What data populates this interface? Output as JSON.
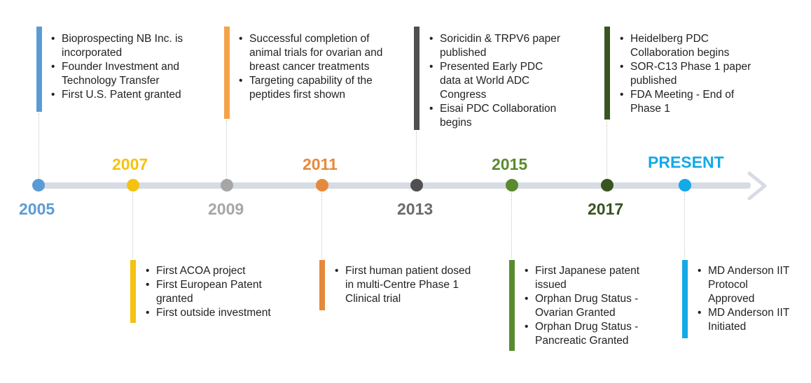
{
  "milestones": [
    {
      "year": "2005",
      "color": "#5b9bd5",
      "items": [
        "Bioprospecting NB Inc. is incorporated",
        "Founder Investment and Technology Transfer",
        "First U.S. Patent granted"
      ]
    },
    {
      "year": "2007",
      "color": "#f5c211",
      "items": [
        "First ACOA project",
        "First European Patent granted",
        "First outside investment"
      ]
    },
    {
      "year": "2009",
      "color": "#a6a6a6",
      "items": [
        "Successful completion of animal trials for ovarian and breast cancer treatments",
        "Targeting capability of the peptides first shown"
      ]
    },
    {
      "year": "2011",
      "color": "#e6893c",
      "items": [
        "First human patient dosed in multi-Centre Phase 1 Clinical trial"
      ]
    },
    {
      "year": "2013",
      "color": "#505050",
      "items": [
        "Soricidin & TRPV6 paper published",
        "Presented Early PDC data at World ADC Congress",
        "Eisai PDC Collaboration begins"
      ]
    },
    {
      "year": "2015",
      "color": "#5a8a2f",
      "items": [
        "First Japanese patent issued",
        "Orphan Drug Status - Ovarian Granted",
        "Orphan Drug Status - Pancreatic Granted"
      ]
    },
    {
      "year": "2017",
      "color": "#375421",
      "items": [
        "Heidelberg PDC Collaboration begins",
        "SOR-C13 Phase 1 paper published",
        "FDA Meeting - End of Phase 1"
      ]
    },
    {
      "year": "PRESENT",
      "color": "#14a9e8",
      "items": [
        "MD Anderson IIT Protocol Approved",
        "MD Anderson IIT Initiated"
      ]
    }
  ]
}
